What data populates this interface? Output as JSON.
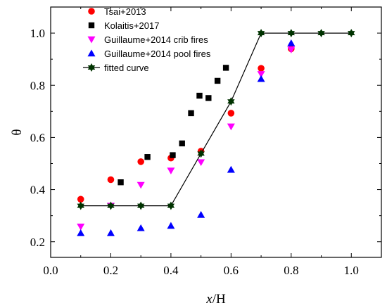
{
  "chart_data": {
    "type": "scatter",
    "xlabel_italic": "x",
    "xlabel_rest": "/H",
    "ylabel": "θ",
    "xlim": [
      0.0,
      1.1
    ],
    "ylim": [
      0.14,
      1.1
    ],
    "xticks": [
      0.0,
      0.2,
      0.4,
      0.6,
      0.8,
      1.0
    ],
    "xtick_labels": [
      "0.0",
      "0.2",
      "0.4",
      "0.6",
      "0.8",
      "1.0"
    ],
    "yticks": [
      0.2,
      0.4,
      0.6,
      0.8,
      1.0
    ],
    "ytick_labels": [
      "0.2",
      "0.4",
      "0.6",
      "0.8",
      "1.0"
    ],
    "grid": false,
    "legend_position": "top-left",
    "series": [
      {
        "name": "Tsai+2013",
        "marker": "circle",
        "color": "#ff0000",
        "points": [
          [
            0.1,
            0.363
          ],
          [
            0.2,
            0.438
          ],
          [
            0.3,
            0.507
          ],
          [
            0.4,
            0.521
          ],
          [
            0.5,
            0.547
          ],
          [
            0.6,
            0.693
          ],
          [
            0.7,
            0.865
          ],
          [
            0.8,
            0.94
          ]
        ]
      },
      {
        "name": "Kolaitis+2017",
        "marker": "square",
        "color": "#000000",
        "points": [
          [
            0.233,
            0.428
          ],
          [
            0.322,
            0.525
          ],
          [
            0.406,
            0.532
          ],
          [
            0.437,
            0.577
          ],
          [
            0.467,
            0.693
          ],
          [
            0.495,
            0.76
          ],
          [
            0.525,
            0.751
          ],
          [
            0.555,
            0.817
          ],
          [
            0.583,
            0.867
          ]
        ]
      },
      {
        "name": "Guillaume+2014 crib fires",
        "marker": "triangle-down",
        "color": "#ff00ff",
        "points": [
          [
            0.1,
            0.258
          ],
          [
            0.2,
            0.338
          ],
          [
            0.3,
            0.418
          ],
          [
            0.4,
            0.473
          ],
          [
            0.5,
            0.505
          ],
          [
            0.6,
            0.642
          ],
          [
            0.7,
            0.843
          ],
          [
            0.8,
            0.937
          ]
        ]
      },
      {
        "name": "Guillaume+2014 pool fires",
        "marker": "triangle-up",
        "color": "#0000ff",
        "points": [
          [
            0.1,
            0.233
          ],
          [
            0.2,
            0.233
          ],
          [
            0.3,
            0.252
          ],
          [
            0.4,
            0.261
          ],
          [
            0.5,
            0.303
          ],
          [
            0.6,
            0.476
          ],
          [
            0.7,
            0.824
          ],
          [
            0.8,
            0.961
          ]
        ]
      },
      {
        "name": "fitted curve",
        "marker": "star",
        "color": "#000000",
        "line_color": "#000000",
        "point_color": "#003300",
        "points": [
          [
            0.1,
            0.338
          ],
          [
            0.2,
            0.338
          ],
          [
            0.3,
            0.338
          ],
          [
            0.4,
            0.338
          ],
          [
            0.5,
            0.538
          ],
          [
            0.6,
            0.738
          ],
          [
            0.7,
            1.0
          ],
          [
            0.8,
            1.0
          ],
          [
            0.9,
            1.0
          ],
          [
            1.0,
            1.0
          ]
        ]
      }
    ]
  }
}
